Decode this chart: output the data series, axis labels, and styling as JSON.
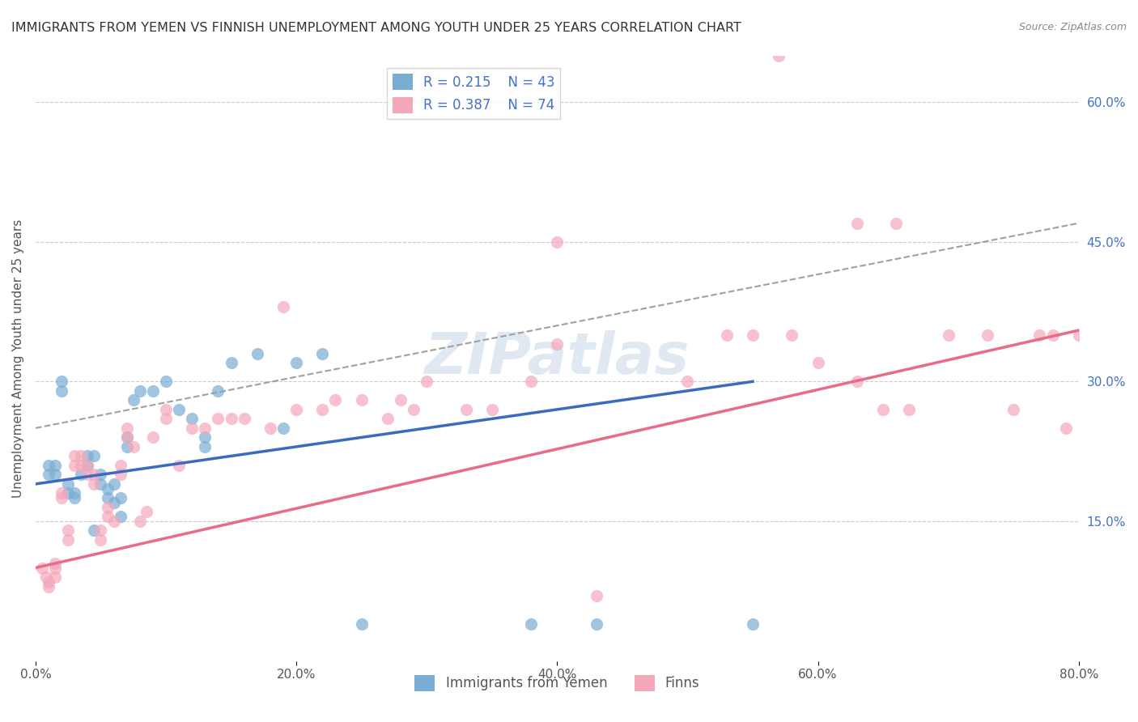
{
  "title": "IMMIGRANTS FROM YEMEN VS FINNISH UNEMPLOYMENT AMONG YOUTH UNDER 25 YEARS CORRELATION CHART",
  "source": "Source: ZipAtlas.com",
  "ylabel": "Unemployment Among Youth under 25 years",
  "xlabel": "",
  "xlim": [
    0.0,
    0.8
  ],
  "ylim": [
    0.0,
    0.65
  ],
  "xticks": [
    0.0,
    0.2,
    0.4,
    0.6,
    0.8
  ],
  "xtick_labels": [
    "0.0%",
    "20.0%",
    "40.0%",
    "60.0%",
    "80.0%"
  ],
  "ytick_labels_right": [
    "15.0%",
    "30.0%",
    "45.0%",
    "60.0%"
  ],
  "ytick_vals_right": [
    0.15,
    0.3,
    0.45,
    0.6
  ],
  "legend_r1": "R = 0.215",
  "legend_n1": "N = 43",
  "legend_r2": "R = 0.387",
  "legend_n2": "N = 74",
  "color_blue_scatter": "#7aadd4",
  "color_pink_scatter": "#f4a7b9",
  "color_blue_line": "#3a6bbf",
  "color_pink_line": "#e86c8a",
  "color_dashed_line": "#a0a0a0",
  "watermark": "ZIPatlas",
  "blue_scatter_x": [
    0.01,
    0.01,
    0.015,
    0.015,
    0.02,
    0.02,
    0.025,
    0.025,
    0.03,
    0.03,
    0.035,
    0.04,
    0.04,
    0.045,
    0.045,
    0.05,
    0.05,
    0.055,
    0.055,
    0.06,
    0.06,
    0.065,
    0.065,
    0.07,
    0.07,
    0.075,
    0.08,
    0.09,
    0.1,
    0.11,
    0.12,
    0.13,
    0.13,
    0.14,
    0.15,
    0.17,
    0.19,
    0.2,
    0.22,
    0.25,
    0.38,
    0.43,
    0.55
  ],
  "blue_scatter_y": [
    0.2,
    0.21,
    0.2,
    0.21,
    0.29,
    0.3,
    0.18,
    0.19,
    0.175,
    0.18,
    0.2,
    0.21,
    0.22,
    0.14,
    0.22,
    0.19,
    0.2,
    0.175,
    0.185,
    0.17,
    0.19,
    0.155,
    0.175,
    0.23,
    0.24,
    0.28,
    0.29,
    0.29,
    0.3,
    0.27,
    0.26,
    0.23,
    0.24,
    0.29,
    0.32,
    0.33,
    0.25,
    0.32,
    0.33,
    0.04,
    0.04,
    0.04,
    0.04
  ],
  "pink_scatter_x": [
    0.005,
    0.008,
    0.01,
    0.01,
    0.015,
    0.015,
    0.015,
    0.02,
    0.02,
    0.025,
    0.025,
    0.03,
    0.03,
    0.035,
    0.035,
    0.04,
    0.04,
    0.045,
    0.045,
    0.05,
    0.05,
    0.055,
    0.055,
    0.06,
    0.065,
    0.065,
    0.07,
    0.07,
    0.075,
    0.08,
    0.085,
    0.09,
    0.1,
    0.1,
    0.11,
    0.12,
    0.13,
    0.14,
    0.15,
    0.16,
    0.18,
    0.19,
    0.2,
    0.22,
    0.23,
    0.25,
    0.27,
    0.28,
    0.29,
    0.3,
    0.33,
    0.35,
    0.38,
    0.4,
    0.43,
    0.5,
    0.53,
    0.55,
    0.58,
    0.6,
    0.63,
    0.65,
    0.67,
    0.7,
    0.73,
    0.75,
    0.77,
    0.78,
    0.79,
    0.8,
    0.63,
    0.66,
    0.4,
    0.57
  ],
  "pink_scatter_y": [
    0.1,
    0.09,
    0.08,
    0.085,
    0.1,
    0.105,
    0.09,
    0.175,
    0.18,
    0.13,
    0.14,
    0.21,
    0.22,
    0.21,
    0.22,
    0.2,
    0.21,
    0.19,
    0.2,
    0.13,
    0.14,
    0.155,
    0.165,
    0.15,
    0.2,
    0.21,
    0.24,
    0.25,
    0.23,
    0.15,
    0.16,
    0.24,
    0.26,
    0.27,
    0.21,
    0.25,
    0.25,
    0.26,
    0.26,
    0.26,
    0.25,
    0.38,
    0.27,
    0.27,
    0.28,
    0.28,
    0.26,
    0.28,
    0.27,
    0.3,
    0.27,
    0.27,
    0.3,
    0.34,
    0.07,
    0.3,
    0.35,
    0.35,
    0.35,
    0.32,
    0.3,
    0.27,
    0.27,
    0.35,
    0.35,
    0.27,
    0.35,
    0.35,
    0.25,
    0.35,
    0.47,
    0.47,
    0.45,
    0.65
  ]
}
